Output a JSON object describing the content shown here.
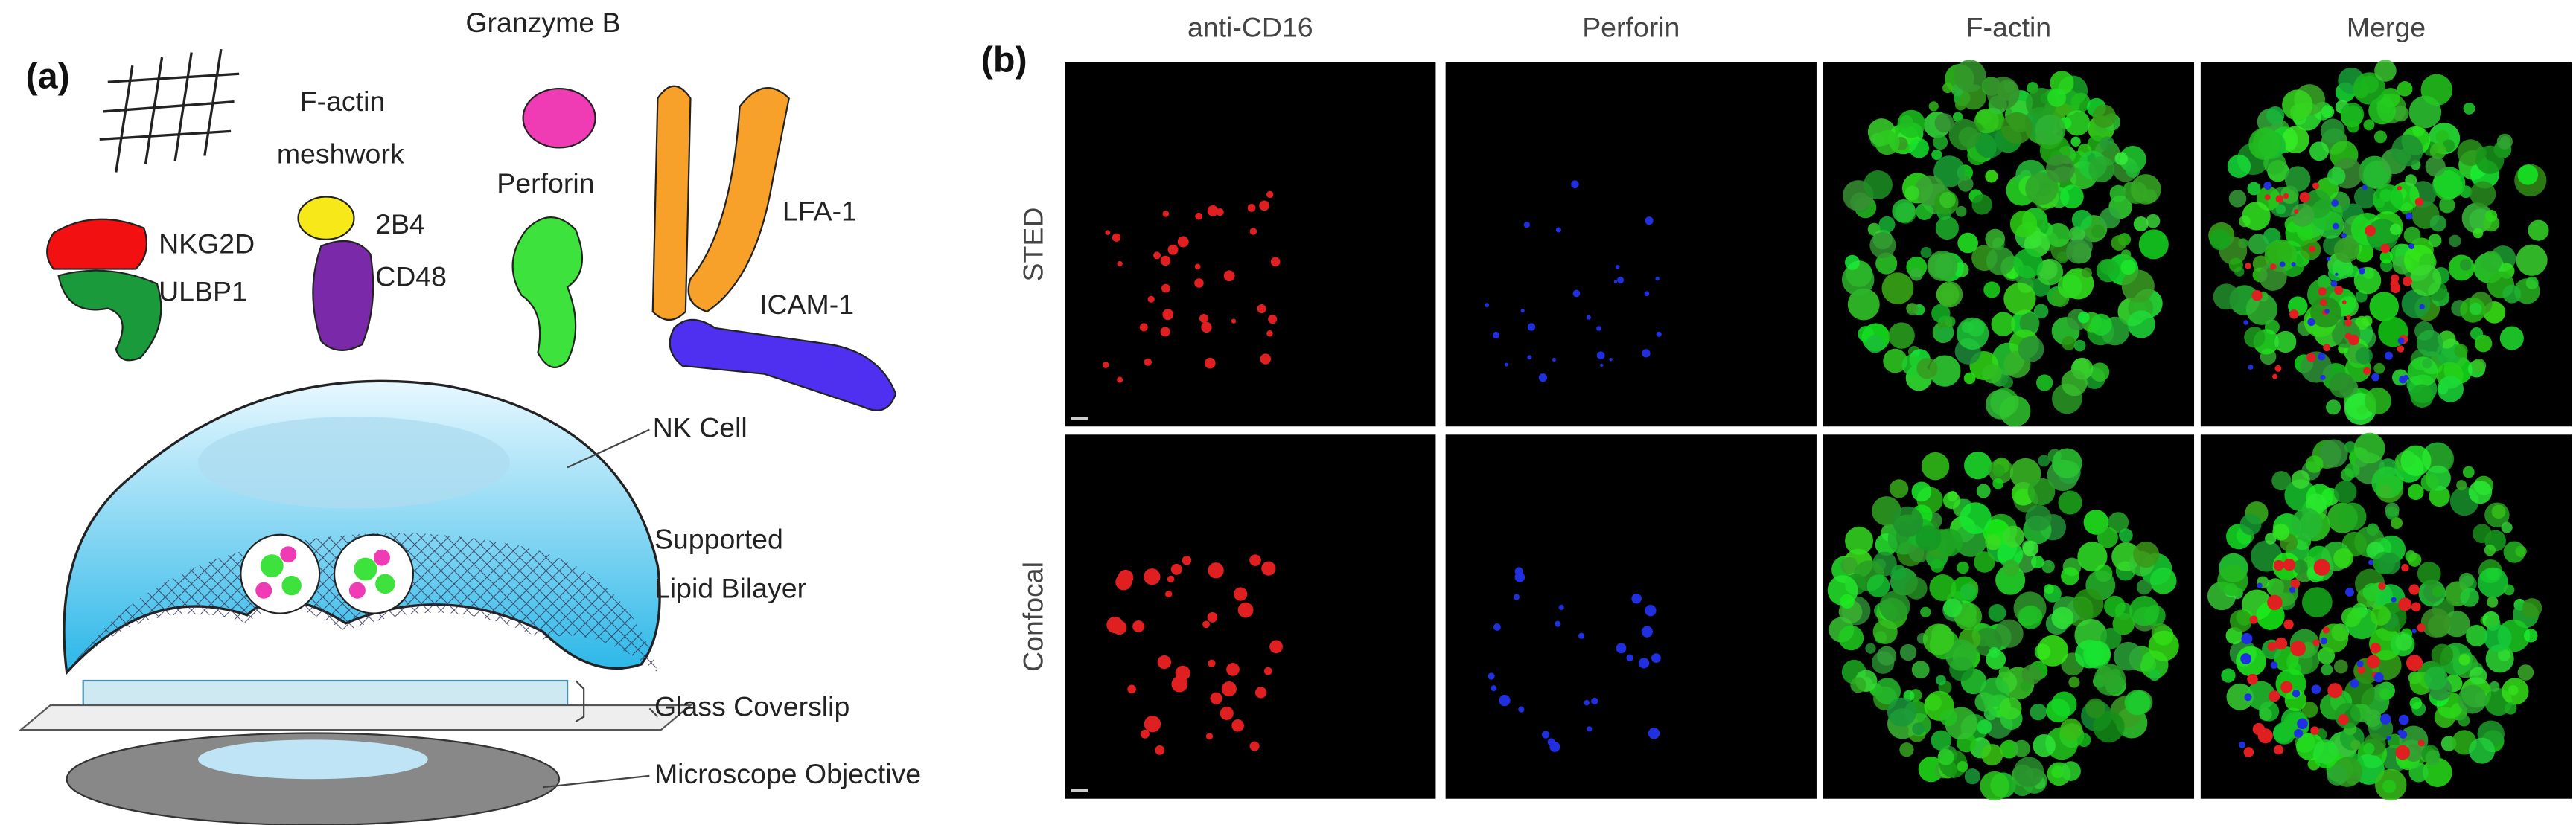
{
  "panel_a": {
    "label": "(a)",
    "labels": {
      "f_actin": [
        "F-actin",
        "meshwork"
      ],
      "granzyme_b": "Granzyme B",
      "perforin": "Perforin",
      "lfa1": "LFA-1",
      "nkg2d": "NKG2D",
      "ulbp1": "ULBP1",
      "b4": "2B4",
      "cd48": "CD48",
      "icam1": "ICAM-1",
      "nk_cell": "NK Cell",
      "bilayer": [
        "Supported",
        "Lipid Bilayer"
      ],
      "coverslip": "Glass Coverslip",
      "objective": "Microscope Objective"
    }
  },
  "panel_b": {
    "label": "(b)",
    "columns": [
      "anti-CD16",
      "Perforin",
      "F-actin",
      "Merge"
    ],
    "rows": [
      "STED",
      "Confocal"
    ]
  }
}
